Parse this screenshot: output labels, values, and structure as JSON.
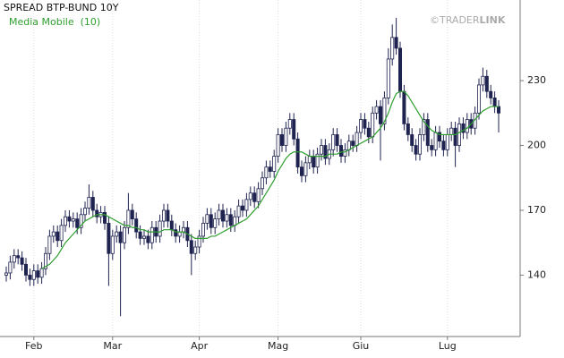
{
  "chart_data": {
    "type": "candlestick",
    "title": "SPREAD BTP-BUND 10Y",
    "watermark": [
      "©TRADER",
      "LINK"
    ],
    "categories": [
      null,
      null,
      null,
      null,
      null,
      null,
      null,
      "Feb",
      null,
      null,
      null,
      null,
      null,
      null,
      null,
      null,
      null,
      null,
      null,
      null,
      null,
      null,
      null,
      null,
      null,
      null,
      null,
      "Mar",
      null,
      null,
      null,
      null,
      null,
      null,
      null,
      null,
      null,
      null,
      null,
      null,
      null,
      null,
      null,
      null,
      null,
      null,
      null,
      null,
      null,
      "Apr",
      null,
      null,
      null,
      null,
      null,
      null,
      null,
      null,
      null,
      null,
      null,
      null,
      null,
      null,
      null,
      null,
      null,
      null,
      null,
      "Mag",
      null,
      null,
      null,
      null,
      null,
      null,
      null,
      null,
      null,
      null,
      null,
      null,
      null,
      null,
      null,
      null,
      null,
      null,
      null,
      null,
      "Giu",
      null,
      null,
      null,
      null,
      null,
      null,
      null,
      null,
      null,
      null,
      null,
      null,
      null,
      null,
      null,
      null,
      null,
      null,
      null,
      null,
      null,
      "Lug",
      null,
      null,
      null,
      null,
      null,
      null,
      null,
      null,
      null,
      null,
      null,
      null,
      null
    ],
    "open": [
      140,
      141,
      146,
      149,
      148,
      145,
      140,
      138,
      142,
      139,
      143,
      150,
      158,
      160,
      156,
      163,
      167,
      165,
      166,
      162,
      168,
      171,
      176,
      170,
      167,
      169,
      164,
      150,
      158,
      160,
      155,
      162,
      170,
      166,
      160,
      157,
      158,
      155,
      162,
      158,
      165,
      170,
      165,
      161,
      158,
      160,
      162,
      156,
      150,
      153,
      158,
      164,
      168,
      162,
      166,
      170,
      165,
      168,
      163,
      167,
      172,
      170,
      175,
      178,
      174,
      180,
      185,
      190,
      188,
      195,
      205,
      200,
      208,
      212,
      203,
      190,
      186,
      192,
      195,
      190,
      196,
      200,
      194,
      198,
      205,
      200,
      195,
      198,
      202,
      200,
      206,
      212,
      208,
      204,
      215,
      218,
      210,
      222,
      240,
      250,
      245,
      225,
      210,
      205,
      200,
      196,
      205,
      212,
      200,
      198,
      206,
      202,
      198,
      205,
      208,
      200,
      210,
      206,
      212,
      208,
      215,
      228,
      232,
      225,
      222,
      218
    ],
    "high": [
      144,
      149,
      152,
      152,
      151,
      148,
      143,
      145,
      145,
      146,
      153,
      161,
      163,
      163,
      166,
      170,
      170,
      169,
      169,
      171,
      174,
      182,
      179,
      173,
      172,
      172,
      167,
      161,
      163,
      163,
      165,
      178,
      173,
      169,
      163,
      161,
      161,
      165,
      165,
      168,
      173,
      173,
      168,
      164,
      163,
      165,
      165,
      159,
      156,
      161,
      167,
      171,
      171,
      169,
      173,
      173,
      171,
      171,
      170,
      175,
      175,
      178,
      181,
      181,
      183,
      188,
      193,
      193,
      198,
      208,
      208,
      211,
      215,
      215,
      206,
      193,
      195,
      198,
      198,
      199,
      203,
      203,
      201,
      208,
      208,
      203,
      201,
      205,
      205,
      209,
      215,
      215,
      211,
      218,
      221,
      221,
      225,
      245,
      256,
      259,
      248,
      228,
      213,
      208,
      203,
      208,
      215,
      215,
      203,
      209,
      209,
      205,
      208,
      211,
      211,
      213,
      213,
      215,
      215,
      218,
      231,
      236,
      235,
      228,
      225,
      221
    ],
    "low": [
      137,
      138,
      143,
      145,
      142,
      137,
      135,
      135,
      136,
      136,
      140,
      147,
      155,
      153,
      153,
      160,
      162,
      162,
      159,
      159,
      165,
      168,
      167,
      164,
      164,
      161,
      135,
      147,
      155,
      121,
      152,
      159,
      163,
      157,
      154,
      154,
      152,
      152,
      155,
      155,
      162,
      162,
      158,
      155,
      155,
      157,
      153,
      140,
      147,
      150,
      155,
      161,
      159,
      159,
      163,
      162,
      162,
      160,
      160,
      164,
      167,
      167,
      172,
      171,
      171,
      177,
      182,
      185,
      185,
      192,
      197,
      197,
      205,
      200,
      187,
      183,
      183,
      189,
      187,
      187,
      193,
      191,
      191,
      195,
      197,
      192,
      192,
      195,
      197,
      197,
      203,
      205,
      201,
      201,
      212,
      193,
      207,
      219,
      237,
      242,
      222,
      207,
      202,
      197,
      193,
      193,
      202,
      197,
      195,
      195,
      199,
      195,
      195,
      202,
      190,
      197,
      203,
      203,
      205,
      205,
      212,
      225,
      222,
      219,
      215,
      206
    ],
    "close": [
      141,
      146,
      149,
      148,
      145,
      140,
      138,
      142,
      139,
      143,
      150,
      158,
      160,
      156,
      163,
      167,
      165,
      166,
      162,
      168,
      171,
      176,
      170,
      167,
      169,
      164,
      150,
      158,
      160,
      155,
      162,
      170,
      166,
      160,
      157,
      158,
      155,
      162,
      158,
      165,
      170,
      165,
      161,
      158,
      160,
      162,
      156,
      150,
      153,
      158,
      164,
      168,
      162,
      166,
      170,
      165,
      168,
      163,
      167,
      172,
      170,
      175,
      178,
      174,
      180,
      185,
      190,
      188,
      195,
      205,
      200,
      208,
      212,
      203,
      190,
      186,
      192,
      195,
      190,
      196,
      200,
      194,
      198,
      205,
      200,
      195,
      198,
      202,
      200,
      206,
      212,
      208,
      204,
      215,
      218,
      210,
      222,
      240,
      250,
      245,
      225,
      210,
      205,
      200,
      196,
      205,
      212,
      200,
      198,
      206,
      202,
      198,
      205,
      208,
      200,
      210,
      206,
      212,
      208,
      215,
      228,
      232,
      225,
      222,
      218,
      215
    ],
    "color": "#1f2350",
    "series": [
      {
        "name": "Media Mobile  (10)",
        "color": "#2e9e2e",
        "values": [
          null,
          null,
          null,
          null,
          null,
          null,
          null,
          null,
          null,
          143,
          144,
          145,
          147,
          149,
          152,
          155,
          157,
          159,
          161,
          163,
          165,
          166,
          167,
          168,
          168,
          168,
          167,
          166,
          165,
          164,
          163,
          163,
          162,
          162,
          161,
          161,
          160,
          160,
          160,
          160,
          161,
          161,
          161,
          160,
          160,
          160,
          159,
          158,
          157,
          157,
          157,
          157,
          158,
          158,
          159,
          160,
          161,
          162,
          163,
          164,
          165,
          166,
          168,
          170,
          172,
          175,
          178,
          181,
          184,
          188,
          191,
          194,
          196,
          197,
          197,
          197,
          196,
          195,
          195,
          195,
          195,
          195,
          196,
          196,
          196,
          197,
          197,
          198,
          199,
          200,
          201,
          202,
          203,
          204,
          206,
          208,
          211,
          215,
          220,
          224,
          225,
          225,
          223,
          220,
          217,
          214,
          211,
          209,
          207,
          206,
          205,
          205,
          205,
          205,
          205,
          206,
          207,
          208,
          210,
          212,
          214,
          216,
          217,
          218,
          218,
          218
        ]
      }
    ],
    "ylim": [
      112,
      264
    ],
    "yticks": [
      140,
      170,
      200,
      230
    ],
    "grid": true
  }
}
